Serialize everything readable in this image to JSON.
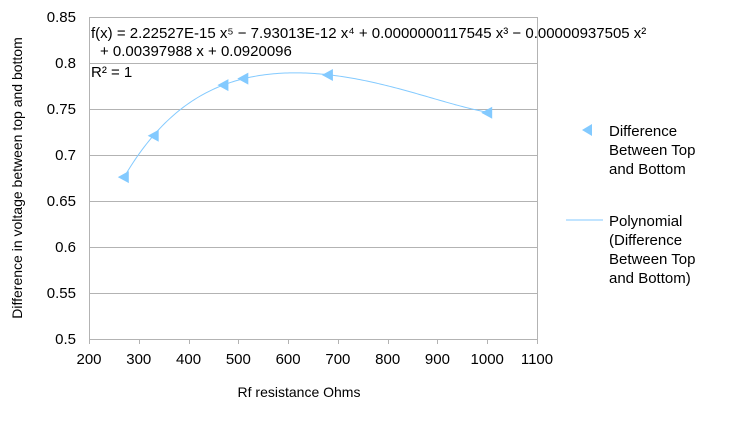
{
  "chart_data": {
    "type": "scatter",
    "title": "",
    "xlabel": "Rf resistance Ohms",
    "ylabel": "Difference in voltage between top and bottom",
    "xlim": [
      200,
      1100
    ],
    "ylim": [
      0.5,
      0.85
    ],
    "x_ticks": [
      200,
      300,
      400,
      500,
      600,
      700,
      800,
      900,
      1000,
      1100
    ],
    "y_ticks": [
      0.5,
      0.55,
      0.6,
      0.65,
      0.7,
      0.75,
      0.8,
      0.85
    ],
    "x_tick_labels": [
      "200",
      "300",
      "400",
      "500",
      "600",
      "700",
      "800",
      "900",
      "1000",
      "1100"
    ],
    "y_tick_labels": [
      "0.5",
      "0.55",
      "0.6",
      "0.65",
      "0.7",
      "0.75",
      "0.8",
      "0.85"
    ],
    "grid": "horizontal",
    "legend_position": "right",
    "series": [
      {
        "name": "Difference Between Top and Bottom",
        "type": "scatter",
        "marker": "triangle-left",
        "color": "#83caff",
        "x": [
          270,
          330,
          470,
          510,
          680,
          1000
        ],
        "y": [
          0.676,
          0.721,
          0.776,
          0.783,
          0.787,
          0.746
        ]
      },
      {
        "name": "Polynomial (Difference Between Top and Bottom)",
        "type": "line",
        "color": "#83caff",
        "coefficients": [
          2.22527e-15,
          -7.93013e-12,
          1.17545e-08,
          -9.37505e-06,
          0.00397988,
          0.0920096
        ],
        "x_range": [
          270,
          1000
        ]
      }
    ],
    "annotations": {
      "equation_line1": "f(x) = 2.22527E-15 x⁵ − 7.93013E-12 x⁴ + 0.0000000117545 x³ − 0.00000937505 x²",
      "equation_line2": "+ 0.00397988 x + 0.0920096",
      "r_squared": "R² = 1"
    },
    "legend": {
      "markers_lines": [
        "Difference",
        "Between Top",
        "and Bottom"
      ],
      "trend_lines": [
        "Polynomial",
        "(Difference",
        "Between Top",
        "and Bottom)"
      ]
    }
  },
  "colors": {
    "series": "#83caff",
    "grid": "#b3b3b3",
    "axis": "#b3b3b3"
  }
}
